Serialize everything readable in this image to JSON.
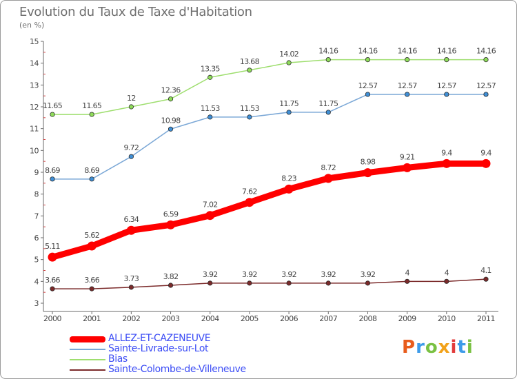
{
  "header": {
    "title": "Evolution du Taux de Taxe d'Habitation",
    "subtitle": "(en %)"
  },
  "logo": {
    "text": "Proxiti",
    "letter_colors": [
      "#e85c1c",
      "#3d9be9",
      "#7ac143",
      "#f2a21a",
      "#e23b3b",
      "#3d9be9",
      "#7ac143"
    ]
  },
  "chart_data": {
    "type": "line",
    "x": [
      "2000",
      "2001",
      "2002",
      "2003",
      "2004",
      "2005",
      "2006",
      "2007",
      "2008",
      "2009",
      "2010",
      "2011"
    ],
    "ylim": [
      3,
      15
    ],
    "yticks": [
      "3",
      "4",
      "5",
      "6",
      "7",
      "8",
      "9",
      "10",
      "11",
      "12",
      "13",
      "14",
      "15"
    ],
    "grid": false,
    "legend_position": "bottom-left",
    "series": [
      {
        "name": "ALLEZ-ET-CAZENEUVE",
        "color": "#ff0000",
        "marker_fill": "#ff0000",
        "thick": true,
        "values": [
          5.11,
          5.62,
          6.34,
          6.59,
          7.02,
          7.62,
          8.23,
          8.72,
          8.98,
          9.21,
          9.4,
          9.4
        ],
        "labels": [
          "5.11",
          "5.62",
          "6.34",
          "6.59",
          "7.02",
          "7.62",
          "8.23",
          "8.72",
          "8.98",
          "9.21",
          "9.4",
          "9.4"
        ]
      },
      {
        "name": "Sainte-Livrade-sur-Lot",
        "color": "#7aa7d6",
        "marker_fill": "#3f8fd6",
        "thick": false,
        "values": [
          8.69,
          8.69,
          9.72,
          10.98,
          11.53,
          11.53,
          11.75,
          11.75,
          12.57,
          12.57,
          12.57,
          12.57
        ],
        "labels": [
          "8.69",
          "8.69",
          "9.72",
          "10.98",
          "11.53",
          "11.53",
          "11.75",
          "11.75",
          "12.57",
          "12.57",
          "12.57",
          "12.57"
        ]
      },
      {
        "name": "Bias",
        "color": "#9ede6e",
        "marker_fill": "#8fdc5a",
        "thick": false,
        "values": [
          11.65,
          11.65,
          12,
          12.36,
          13.35,
          13.68,
          14.02,
          14.16,
          14.16,
          14.16,
          14.16,
          14.16
        ],
        "labels": [
          "11.65",
          "11.65",
          "12",
          "12.36",
          "13.35",
          "13.68",
          "14.02",
          "14.16",
          "14.16",
          "14.16",
          "14.16",
          "14.16"
        ]
      },
      {
        "name": "Sainte-Colombe-de-Villeneuve",
        "color": "#7b2a2a",
        "marker_fill": "#7b2a2a",
        "thick": false,
        "values": [
          3.66,
          3.66,
          3.73,
          3.82,
          3.92,
          3.92,
          3.92,
          3.92,
          3.92,
          4,
          4,
          4.1
        ],
        "labels": [
          "3.66",
          "3.66",
          "3.73",
          "3.82",
          "3.92",
          "3.92",
          "3.92",
          "3.92",
          "3.92",
          "4",
          "4",
          "4.1"
        ]
      }
    ]
  }
}
